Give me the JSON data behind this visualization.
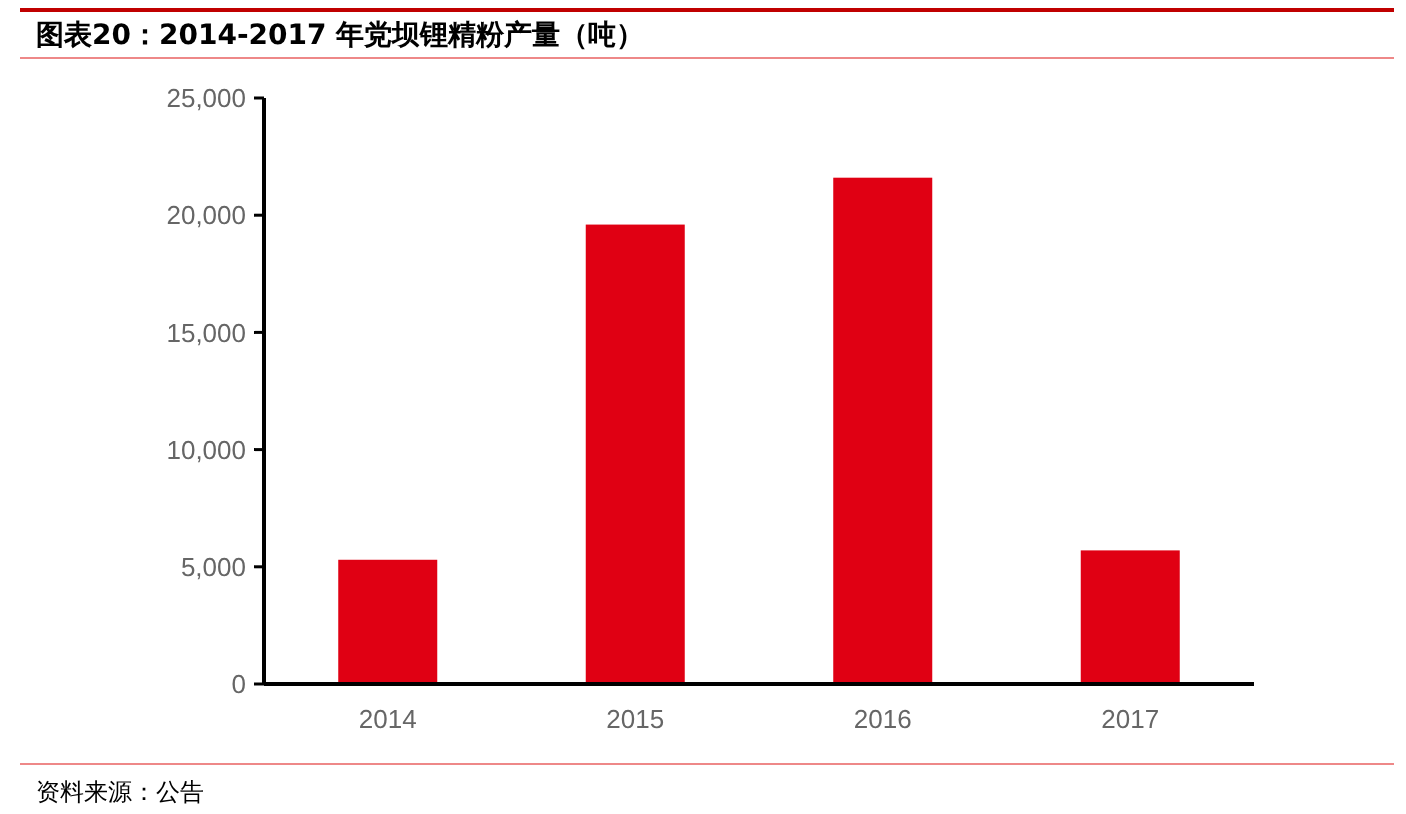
{
  "chart_data": {
    "type": "bar",
    "title": "图表20：2014-2017 年党坝锂精粉产量（吨）",
    "categories": [
      "2014",
      "2015",
      "2016",
      "2017"
    ],
    "values": [
      5300,
      19600,
      21600,
      5700
    ],
    "color": "#e00013",
    "ylim": [
      0,
      25000
    ],
    "yticks": [
      0,
      {
        "value": 5000,
        "label": "5,000"
      },
      {
        "value": 10000,
        "label": "10,000"
      },
      {
        "value": 15000,
        "label": "15,000"
      },
      {
        "value": 20000,
        "label": "20,000"
      },
      {
        "value": 25000,
        "label": "25,000"
      }
    ],
    "grid": false,
    "annotations": [
      "资料来源：公告"
    ]
  }
}
